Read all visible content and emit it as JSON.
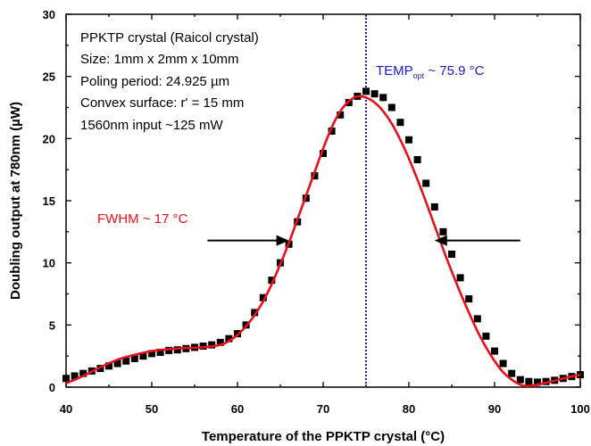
{
  "chart_data": {
    "type": "scatter",
    "title": "",
    "xlabel": "Temperature of the PPKTP crystal (°C)",
    "ylabel": "Doubling output at 780nm (µW)",
    "xlim": [
      40,
      100
    ],
    "ylim": [
      0,
      30
    ],
    "x_ticks": [
      "40",
      "50",
      "60",
      "70",
      "80",
      "90",
      "100"
    ],
    "y_ticks": [
      "0",
      "5",
      "10",
      "15",
      "20",
      "25",
      "30"
    ],
    "grid": false,
    "legend": "none",
    "info_lines": [
      "PPKTP crystal (Raicol crystal)",
      "Size: 1mm x 2mm x 10mm",
      "Poling period: 24.925 µm",
      "Convex surface: r' = 15 mm",
      "1560nm input ~125 mW"
    ],
    "annotations": {
      "temp_label": "TEMP",
      "temp_sub": "opt",
      "temp_value": " ~ 75.9 °C",
      "temp_x": 75.0,
      "fwhm_label": "FWHM ~ 17 °C",
      "fwhm_left_arrow_start": 56.5,
      "fwhm_left_arrow_end": 66.0,
      "fwhm_right_arrow_start": 93.0,
      "fwhm_right_arrow_end": 83.0,
      "fwhm_y": 11.8
    },
    "colors": {
      "data": "#000000",
      "fit": "#e8101a",
      "temp_line": "#1a1ad6",
      "fwhm_text": "#e8101a"
    },
    "series": [
      {
        "kind": "markers",
        "x": [
          40,
          41,
          42,
          43,
          44,
          45,
          46,
          47,
          48,
          49,
          50,
          51,
          52,
          53,
          54,
          55,
          56,
          57,
          58,
          59,
          60,
          61,
          62,
          63,
          64,
          65,
          66,
          67,
          68,
          69,
          70,
          71,
          72,
          73,
          74,
          75,
          76,
          77,
          78,
          79,
          80,
          81,
          82,
          83,
          84,
          85,
          86,
          87,
          88,
          89,
          90,
          91,
          92,
          93,
          94,
          95,
          96,
          97,
          98,
          99,
          100
        ],
        "y": [
          0.7,
          0.9,
          1.1,
          1.3,
          1.5,
          1.7,
          1.9,
          2.1,
          2.3,
          2.5,
          2.7,
          2.8,
          2.95,
          3.0,
          3.1,
          3.2,
          3.3,
          3.4,
          3.6,
          3.9,
          4.3,
          5.0,
          6.0,
          7.2,
          8.6,
          10.0,
          11.5,
          13.3,
          15.2,
          17.0,
          18.8,
          20.6,
          21.9,
          22.9,
          23.4,
          23.8,
          23.6,
          23.3,
          22.5,
          21.3,
          19.9,
          18.3,
          16.4,
          14.5,
          12.5,
          10.7,
          8.8,
          7.1,
          5.5,
          4.1,
          2.9,
          1.9,
          1.1,
          0.6,
          0.45,
          0.4,
          0.45,
          0.55,
          0.7,
          0.85,
          1.0
        ]
      },
      {
        "kind": "fit",
        "x": [
          40,
          42,
          44,
          46,
          48,
          50,
          52,
          54,
          56,
          58,
          59,
          60,
          61,
          62,
          63,
          64,
          65,
          66,
          67,
          68,
          69,
          70,
          71,
          72,
          73,
          74,
          75,
          76,
          77,
          78,
          79,
          80,
          81,
          82,
          83,
          84,
          85,
          86,
          87,
          88,
          89,
          90,
          91,
          92,
          93,
          94,
          96,
          98,
          100
        ],
        "y": [
          0.3,
          0.9,
          1.6,
          2.2,
          2.6,
          2.9,
          3.05,
          3.15,
          3.2,
          3.4,
          3.7,
          4.2,
          4.9,
          5.8,
          6.9,
          8.3,
          9.9,
          11.6,
          13.5,
          15.4,
          17.3,
          19.2,
          20.9,
          22.2,
          23.0,
          23.4,
          23.3,
          22.9,
          22.2,
          21.2,
          19.9,
          18.4,
          16.7,
          14.9,
          13.0,
          11.1,
          9.3,
          7.6,
          6.0,
          4.5,
          3.2,
          2.1,
          1.2,
          0.6,
          0.2,
          0.1,
          0.35,
          0.7,
          1.0
        ]
      }
    ]
  }
}
